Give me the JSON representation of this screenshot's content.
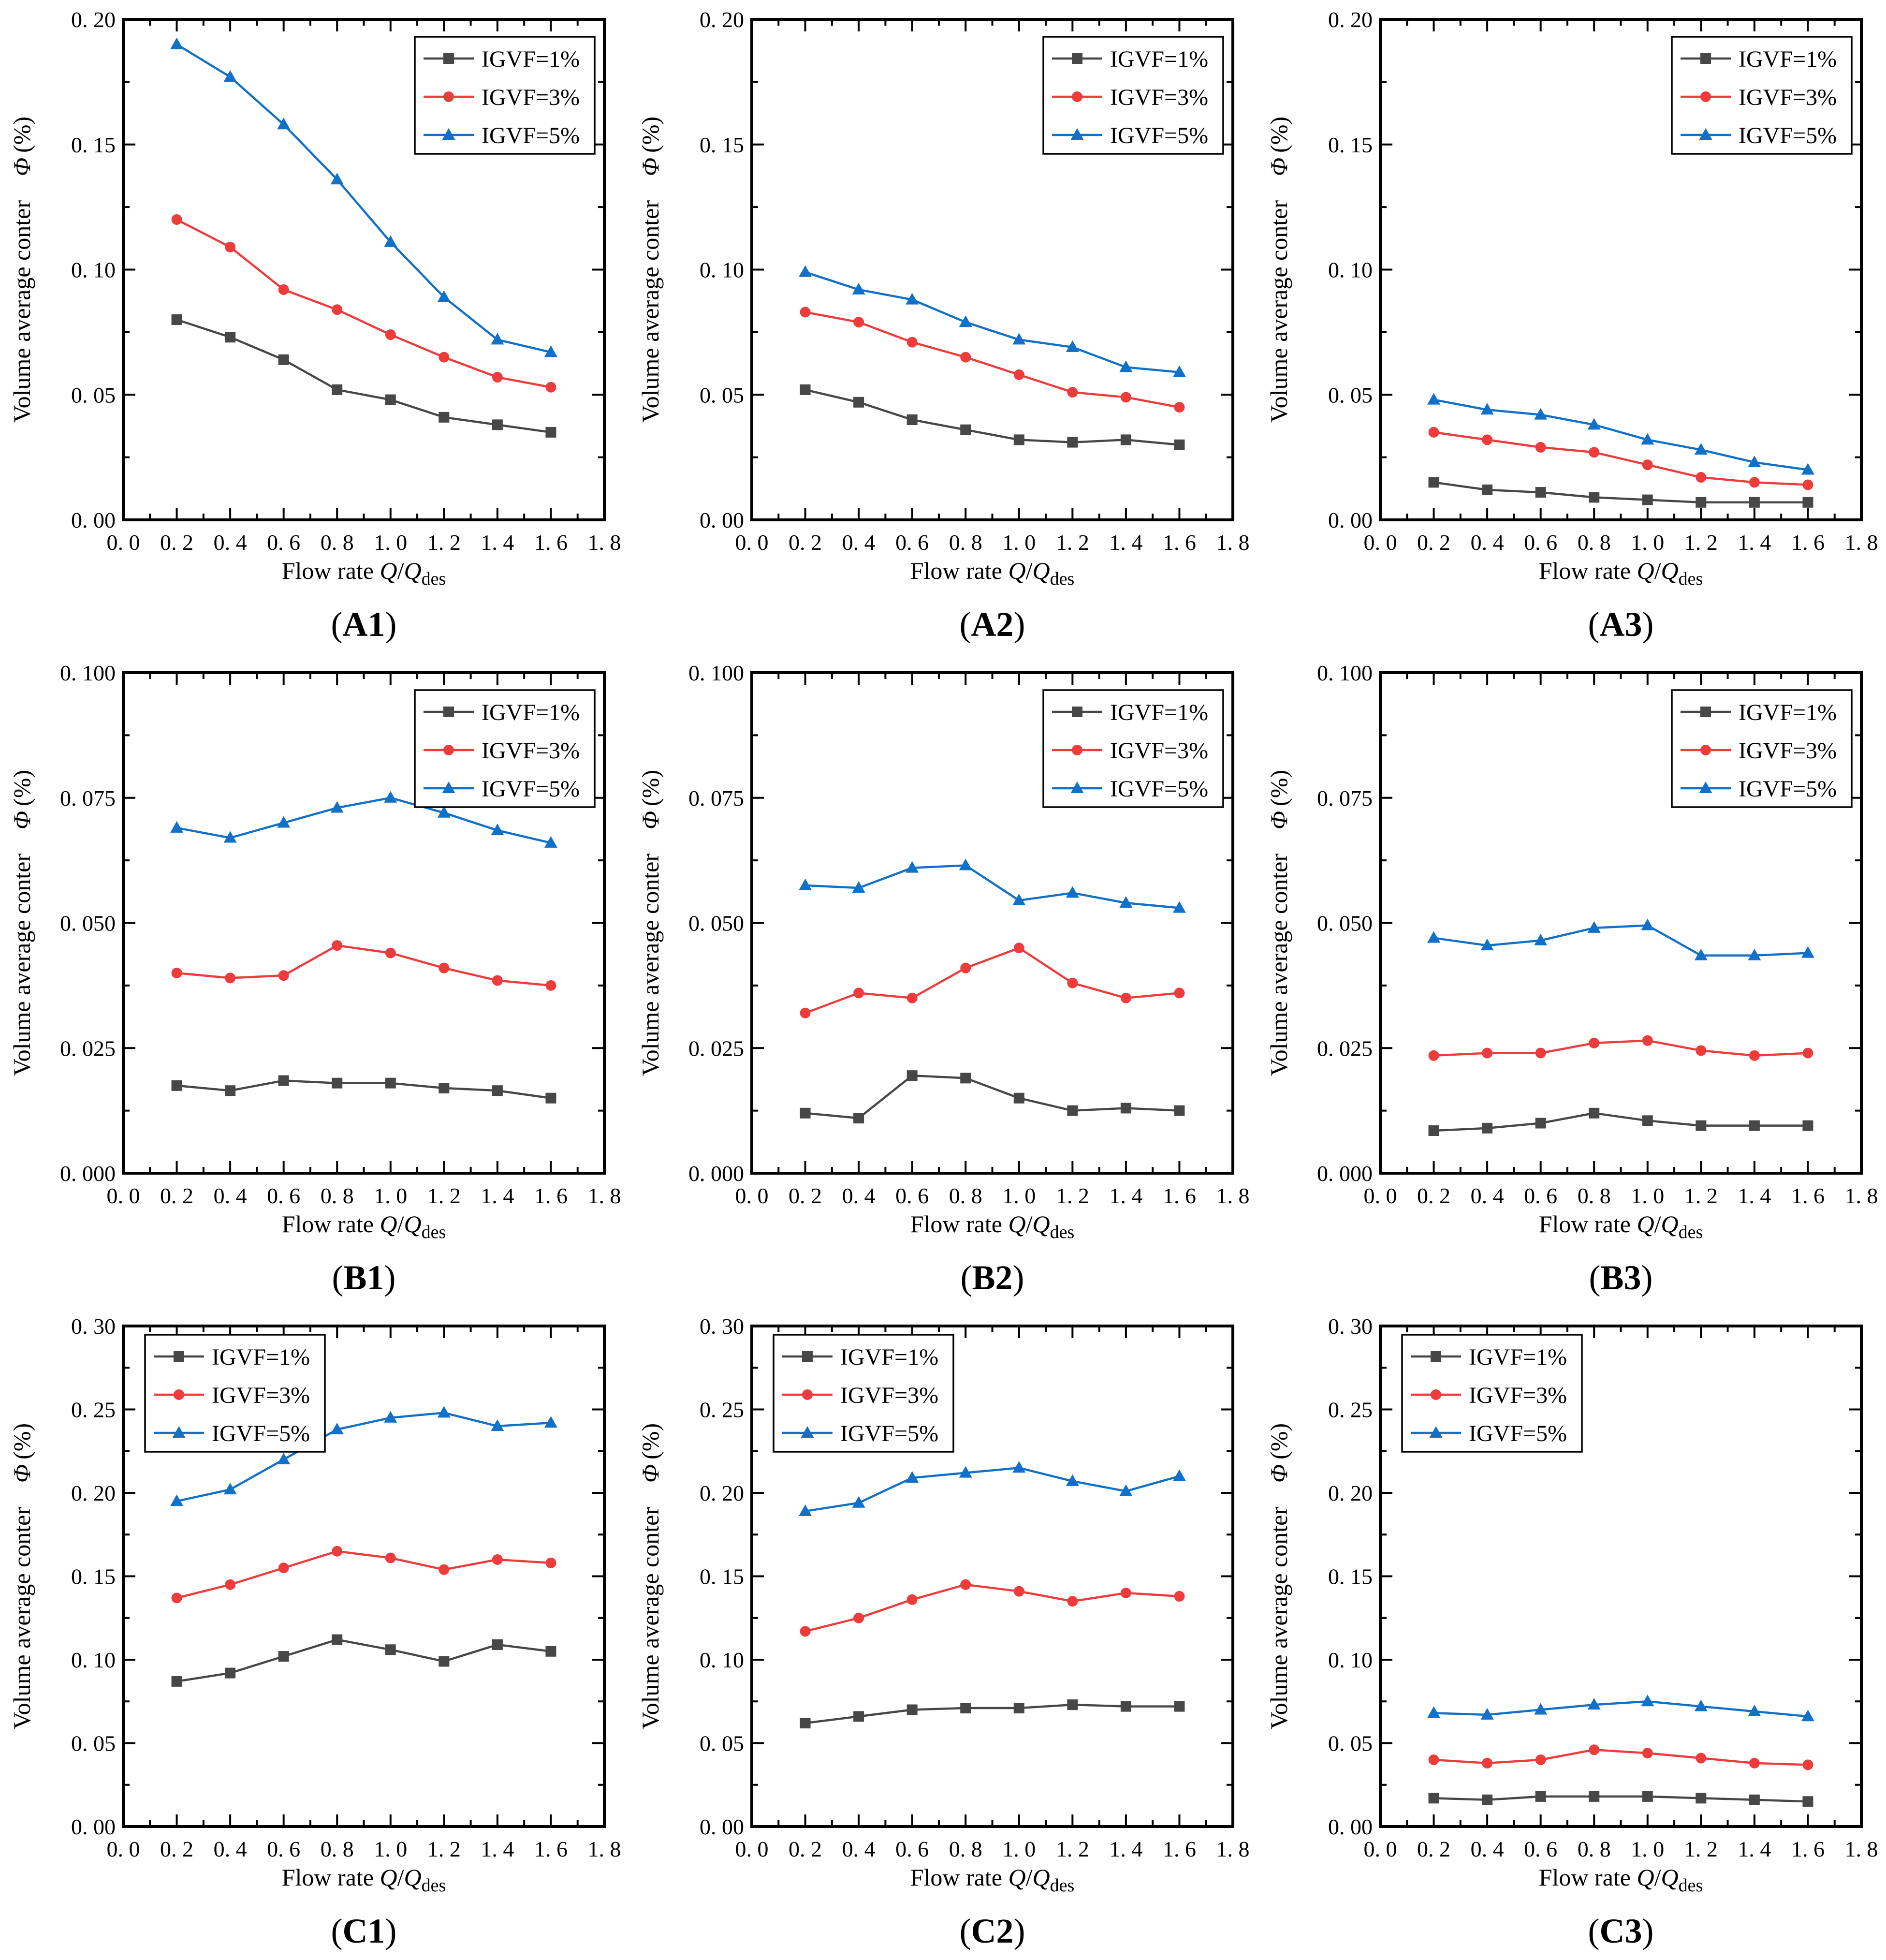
{
  "page": {
    "background": "#ffffff"
  },
  "figure": {
    "x_axis": {
      "label_prefix": "Flow rate ",
      "label_var1": "Q",
      "label_slash": "/",
      "label_var2": "Q",
      "label_subscript": "des",
      "tick_values": [
        0.0,
        0.2,
        0.4,
        0.6,
        0.8,
        1.0,
        1.2,
        1.4,
        1.6,
        1.8
      ],
      "tick_labels": [
        "0. 0",
        "0. 2",
        "0. 4",
        "0. 6",
        "0. 8",
        "1. 0",
        "1. 2",
        "1. 4",
        "1. 6",
        "1. 8"
      ]
    },
    "y_axis": {
      "label_prefix": "Volume average conter",
      "label_symbol": "Φ",
      "label_unit": "(%)"
    },
    "legend_entries": [
      {
        "label": "IGVF=1%",
        "color": "#474747",
        "marker": "square"
      },
      {
        "label": "IGVF=3%",
        "color": "#ee3b3c",
        "marker": "circle"
      },
      {
        "label": "IGVF=5%",
        "color": "#1170c8",
        "marker": "triangle"
      }
    ]
  },
  "chart_data": [
    {
      "id": "A1",
      "caption": "(A1)",
      "type": "line",
      "x": [
        0.2,
        0.4,
        0.6,
        0.8,
        1.0,
        1.2,
        1.4,
        1.6
      ],
      "xlim": [
        0,
        1.8
      ],
      "ylim": [
        0,
        0.2
      ],
      "yticks": [
        0,
        0.05,
        0.1,
        0.15,
        0.2
      ],
      "ytick_labels": [
        "0. 00",
        "0. 05",
        "0. 10",
        "0. 15",
        "0. 20"
      ],
      "legend_pos": "top-right",
      "series": [
        {
          "name": "IGVF=1%",
          "values": [
            0.08,
            0.073,
            0.064,
            0.052,
            0.048,
            0.041,
            0.038,
            0.035
          ]
        },
        {
          "name": "IGVF=3%",
          "values": [
            0.12,
            0.109,
            0.092,
            0.084,
            0.074,
            0.065,
            0.057,
            0.053
          ]
        },
        {
          "name": "IGVF=5%",
          "values": [
            0.19,
            0.177,
            0.158,
            0.136,
            0.111,
            0.089,
            0.072,
            0.067
          ]
        }
      ]
    },
    {
      "id": "A2",
      "caption": "(A2)",
      "type": "line",
      "x": [
        0.2,
        0.4,
        0.6,
        0.8,
        1.0,
        1.2,
        1.4,
        1.6
      ],
      "xlim": [
        0,
        1.8
      ],
      "ylim": [
        0,
        0.2
      ],
      "yticks": [
        0,
        0.05,
        0.1,
        0.15,
        0.2
      ],
      "ytick_labels": [
        "0. 00",
        "0. 05",
        "0. 10",
        "0. 15",
        "0. 20"
      ],
      "legend_pos": "top-right",
      "series": [
        {
          "name": "IGVF=1%",
          "values": [
            0.052,
            0.047,
            0.04,
            0.036,
            0.032,
            0.031,
            0.032,
            0.03
          ]
        },
        {
          "name": "IGVF=3%",
          "values": [
            0.083,
            0.079,
            0.071,
            0.065,
            0.058,
            0.051,
            0.049,
            0.045
          ]
        },
        {
          "name": "IGVF=5%",
          "values": [
            0.099,
            0.092,
            0.088,
            0.079,
            0.072,
            0.069,
            0.061,
            0.059
          ]
        }
      ]
    },
    {
      "id": "A3",
      "caption": "(A3)",
      "type": "line",
      "x": [
        0.2,
        0.4,
        0.6,
        0.8,
        1.0,
        1.2,
        1.4,
        1.6
      ],
      "xlim": [
        0,
        1.8
      ],
      "ylim": [
        0,
        0.2
      ],
      "yticks": [
        0,
        0.05,
        0.1,
        0.15,
        0.2
      ],
      "ytick_labels": [
        "0. 00",
        "0. 05",
        "0. 10",
        "0. 15",
        "0. 20"
      ],
      "legend_pos": "top-right",
      "series": [
        {
          "name": "IGVF=1%",
          "values": [
            0.015,
            0.012,
            0.011,
            0.009,
            0.008,
            0.007,
            0.007,
            0.007
          ]
        },
        {
          "name": "IGVF=3%",
          "values": [
            0.035,
            0.032,
            0.029,
            0.027,
            0.022,
            0.017,
            0.015,
            0.014
          ]
        },
        {
          "name": "IGVF=5%",
          "values": [
            0.048,
            0.044,
            0.042,
            0.038,
            0.032,
            0.028,
            0.023,
            0.02
          ]
        }
      ]
    },
    {
      "id": "B1",
      "caption": "(B1)",
      "type": "line",
      "x": [
        0.2,
        0.4,
        0.6,
        0.8,
        1.0,
        1.2,
        1.4,
        1.6
      ],
      "xlim": [
        0,
        1.8
      ],
      "ylim": [
        0,
        0.1
      ],
      "yticks": [
        0,
        0.025,
        0.05,
        0.075,
        0.1
      ],
      "ytick_labels": [
        "0. 000",
        "0. 025",
        "0. 050",
        "0. 075",
        "0. 100"
      ],
      "legend_pos": "top-right",
      "series": [
        {
          "name": "IGVF=1%",
          "values": [
            0.0175,
            0.0165,
            0.0185,
            0.018,
            0.018,
            0.017,
            0.0165,
            0.015
          ]
        },
        {
          "name": "IGVF=3%",
          "values": [
            0.04,
            0.039,
            0.0395,
            0.0455,
            0.044,
            0.041,
            0.0385,
            0.0375
          ]
        },
        {
          "name": "IGVF=5%",
          "values": [
            0.069,
            0.067,
            0.07,
            0.073,
            0.075,
            0.072,
            0.0685,
            0.066
          ]
        }
      ]
    },
    {
      "id": "B2",
      "caption": "(B2)",
      "type": "line",
      "x": [
        0.2,
        0.4,
        0.6,
        0.8,
        1.0,
        1.2,
        1.4,
        1.6
      ],
      "xlim": [
        0,
        1.8
      ],
      "ylim": [
        0,
        0.1
      ],
      "yticks": [
        0,
        0.025,
        0.05,
        0.075,
        0.1
      ],
      "ytick_labels": [
        "0. 000",
        "0. 025",
        "0. 050",
        "0. 075",
        "0. 100"
      ],
      "legend_pos": "top-right",
      "series": [
        {
          "name": "IGVF=1%",
          "values": [
            0.012,
            0.011,
            0.0195,
            0.019,
            0.015,
            0.0125,
            0.013,
            0.0125
          ]
        },
        {
          "name": "IGVF=3%",
          "values": [
            0.032,
            0.036,
            0.035,
            0.041,
            0.045,
            0.038,
            0.035,
            0.036
          ]
        },
        {
          "name": "IGVF=5%",
          "values": [
            0.0575,
            0.057,
            0.061,
            0.0615,
            0.0545,
            0.056,
            0.054,
            0.053
          ]
        }
      ]
    },
    {
      "id": "B3",
      "caption": "(B3)",
      "type": "line",
      "x": [
        0.2,
        0.4,
        0.6,
        0.8,
        1.0,
        1.2,
        1.4,
        1.6
      ],
      "xlim": [
        0,
        1.8
      ],
      "ylim": [
        0,
        0.1
      ],
      "yticks": [
        0,
        0.025,
        0.05,
        0.075,
        0.1
      ],
      "ytick_labels": [
        "0. 000",
        "0. 025",
        "0. 050",
        "0. 075",
        "0. 100"
      ],
      "legend_pos": "top-right",
      "series": [
        {
          "name": "IGVF=1%",
          "values": [
            0.0085,
            0.009,
            0.01,
            0.012,
            0.0105,
            0.0095,
            0.0095,
            0.0095
          ]
        },
        {
          "name": "IGVF=3%",
          "values": [
            0.0235,
            0.024,
            0.024,
            0.026,
            0.0265,
            0.0245,
            0.0235,
            0.024
          ]
        },
        {
          "name": "IGVF=5%",
          "values": [
            0.047,
            0.0455,
            0.0465,
            0.049,
            0.0495,
            0.0435,
            0.0435,
            0.044
          ]
        }
      ]
    },
    {
      "id": "C1",
      "caption": "(C1)",
      "type": "line",
      "x": [
        0.2,
        0.4,
        0.6,
        0.8,
        1.0,
        1.2,
        1.4,
        1.6
      ],
      "xlim": [
        0,
        1.8
      ],
      "ylim": [
        0,
        0.3
      ],
      "yticks": [
        0,
        0.05,
        0.1,
        0.15,
        0.2,
        0.25,
        0.3
      ],
      "ytick_labels": [
        "0. 00",
        "0. 05",
        "0. 10",
        "0. 15",
        "0. 20",
        "0. 25",
        "0. 30"
      ],
      "legend_pos": "top-left",
      "series": [
        {
          "name": "IGVF=1%",
          "values": [
            0.087,
            0.092,
            0.102,
            0.112,
            0.106,
            0.099,
            0.109,
            0.105
          ]
        },
        {
          "name": "IGVF=3%",
          "values": [
            0.137,
            0.145,
            0.155,
            0.165,
            0.161,
            0.154,
            0.16,
            0.158
          ]
        },
        {
          "name": "IGVF=5%",
          "values": [
            0.195,
            0.202,
            0.22,
            0.238,
            0.245,
            0.248,
            0.24,
            0.242
          ]
        }
      ]
    },
    {
      "id": "C2",
      "caption": "(C2)",
      "type": "line",
      "x": [
        0.2,
        0.4,
        0.6,
        0.8,
        1.0,
        1.2,
        1.4,
        1.6
      ],
      "xlim": [
        0,
        1.8
      ],
      "ylim": [
        0,
        0.3
      ],
      "yticks": [
        0,
        0.05,
        0.1,
        0.15,
        0.2,
        0.25,
        0.3
      ],
      "ytick_labels": [
        "0. 00",
        "0. 05",
        "0. 10",
        "0. 15",
        "0. 20",
        "0. 25",
        "0. 30"
      ],
      "legend_pos": "top-left",
      "series": [
        {
          "name": "IGVF=1%",
          "values": [
            0.062,
            0.066,
            0.07,
            0.071,
            0.071,
            0.073,
            0.072,
            0.072
          ]
        },
        {
          "name": "IGVF=3%",
          "values": [
            0.117,
            0.125,
            0.136,
            0.145,
            0.141,
            0.135,
            0.14,
            0.138
          ]
        },
        {
          "name": "IGVF=5%",
          "values": [
            0.189,
            0.194,
            0.209,
            0.212,
            0.215,
            0.207,
            0.201,
            0.21
          ]
        }
      ]
    },
    {
      "id": "C3",
      "caption": "(C3)",
      "type": "line",
      "x": [
        0.2,
        0.4,
        0.6,
        0.8,
        1.0,
        1.2,
        1.4,
        1.6
      ],
      "xlim": [
        0,
        1.8
      ],
      "ylim": [
        0,
        0.3
      ],
      "yticks": [
        0,
        0.05,
        0.1,
        0.15,
        0.2,
        0.25,
        0.3
      ],
      "ytick_labels": [
        "0. 00",
        "0. 05",
        "0. 10",
        "0. 15",
        "0. 20",
        "0. 25",
        "0. 30"
      ],
      "legend_pos": "top-left",
      "series": [
        {
          "name": "IGVF=1%",
          "values": [
            0.017,
            0.016,
            0.018,
            0.018,
            0.018,
            0.017,
            0.016,
            0.015
          ]
        },
        {
          "name": "IGVF=3%",
          "values": [
            0.04,
            0.038,
            0.04,
            0.046,
            0.044,
            0.041,
            0.038,
            0.037
          ]
        },
        {
          "name": "IGVF=5%",
          "values": [
            0.068,
            0.067,
            0.07,
            0.073,
            0.075,
            0.072,
            0.069,
            0.066
          ]
        }
      ]
    }
  ]
}
